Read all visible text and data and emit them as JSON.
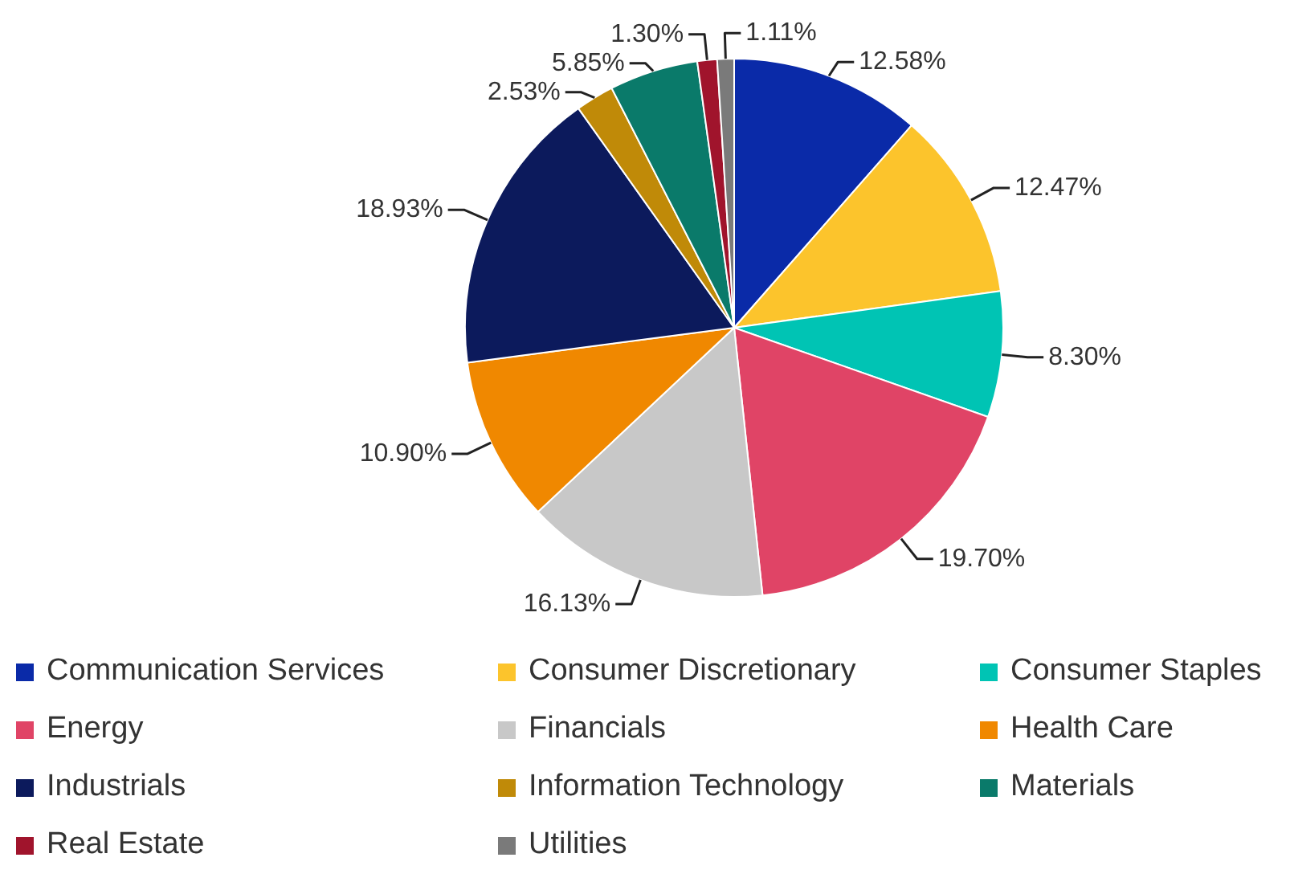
{
  "chart_data": {
    "type": "pie",
    "categories": [
      "Communication Services",
      "Consumer Discretionary",
      "Consumer Staples",
      "Energy",
      "Financials",
      "Health Care",
      "Industrials",
      "Information Technology",
      "Materials",
      "Real Estate",
      "Utilities"
    ],
    "values": [
      12.58,
      12.47,
      8.3,
      19.7,
      16.13,
      10.9,
      18.93,
      2.53,
      5.85,
      1.3,
      1.11
    ],
    "value_labels": [
      "12.58%",
      "12.47%",
      "8.30%",
      "19.70%",
      "16.13%",
      "10.90%",
      "18.93%",
      "2.53%",
      "5.85%",
      "1.30%",
      "1.11%"
    ],
    "colors": [
      "#0a2aa8",
      "#fcc42c",
      "#00c4b4",
      "#e04466",
      "#c8c8c8",
      "#f08800",
      "#0c1a5c",
      "#c08a08",
      "#0a7a6a",
      "#a0142c",
      "#7a7a7a"
    ],
    "legend": "bottom"
  }
}
